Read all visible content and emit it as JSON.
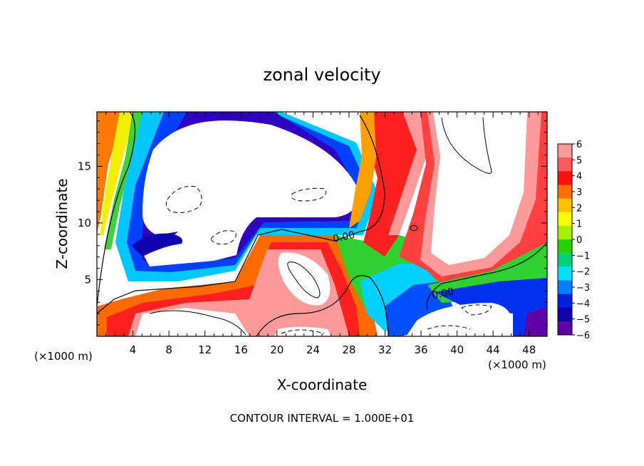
{
  "chart_data": {
    "type": "heatmap",
    "title": "zonal velocity",
    "xlabel": "X-coordinate",
    "ylabel": "Z-coordinate",
    "x_unit_left": "(×1000 m)",
    "x_unit_right": "(×1000 m)",
    "footer": "CONTOUR INTERVAL = 1.000E+01",
    "xlim": [
      0,
      50
    ],
    "ylim": [
      0,
      19.8
    ],
    "x_ticks": [
      4,
      8,
      12,
      16,
      20,
      24,
      28,
      32,
      36,
      40,
      44,
      48
    ],
    "y_ticks": [
      5,
      10,
      15
    ],
    "colorbar": {
      "range": [
        -6,
        6
      ],
      "labels": [
        "6",
        "5",
        "4",
        "3",
        "2",
        "1",
        "0",
        "−1",
        "−2",
        "−3",
        "−4",
        "−5",
        "−6"
      ],
      "colors": [
        "#ff9a9a",
        "#ff5a5a",
        "#ff1010",
        "#ff7000",
        "#ffc000",
        "#ffff00",
        "#a8f000",
        "#28d000",
        "#00d080",
        "#00e0ff",
        "#0080ff",
        "#0020e0",
        "#1000b0",
        "#6000a8"
      ]
    },
    "contour_labels": [
      {
        "text": "0.00",
        "x": 27.5,
        "y": 8.5
      },
      {
        "text": "0.00",
        "x": 38.5,
        "y": 3.5
      }
    ],
    "grid": false
  }
}
